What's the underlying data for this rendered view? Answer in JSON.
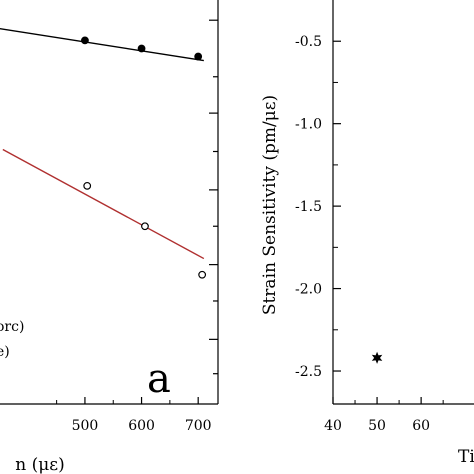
{
  "chart_data": [
    {
      "type": "scatter",
      "panel_label": "a",
      "xlabel_visible": "n (με)",
      "ylabel": "",
      "x_ticks": [
        "500",
        "600",
        "700"
      ],
      "x_tick_values": [
        500,
        600,
        700
      ],
      "xlim": [
        350,
        735
      ],
      "legend_fragments": [
        "orc)",
        "e)"
      ],
      "series": [
        {
          "marker": "filled-circle",
          "color": "#000000",
          "points": [
            {
              "x": 500,
              "y": 0.1
            },
            {
              "x": 600,
              "y": 0.12
            },
            {
              "x": 700,
              "y": 0.14
            }
          ],
          "fit_line": {
            "x": [
              300,
              710
            ],
            "y": [
              0.06,
              0.15
            ],
            "color": "#000000"
          }
        },
        {
          "marker": "open-circle",
          "color": "#000000",
          "points": [
            {
              "x": 504,
              "y": 0.46
            },
            {
              "x": 606,
              "y": 0.56
            },
            {
              "x": 707,
              "y": 0.68
            }
          ],
          "fit_line": {
            "x": [
              355,
              710
            ],
            "y": [
              0.37,
              0.64
            ],
            "color": "#b03030"
          }
        }
      ]
    },
    {
      "type": "scatter",
      "xlabel_visible": "Ti",
      "ylabel": "Strain Sensitivity (pm/με)",
      "x_ticks": [
        "40",
        "50",
        "60"
      ],
      "x_tick_values": [
        40,
        50,
        60
      ],
      "xlim": [
        40,
        72
      ],
      "y_ticks": [
        "-0.5",
        "-1.0",
        "-1.5",
        "-2.0",
        "-2.5"
      ],
      "y_tick_values": [
        -0.5,
        -1.0,
        -1.5,
        -2.0,
        -2.5
      ],
      "ylim": [
        -2.7,
        -0.25
      ],
      "series": [
        {
          "marker": "filled-star",
          "color": "#000000",
          "points": [
            {
              "x": 50,
              "y": -2.42
            }
          ]
        }
      ]
    }
  ]
}
